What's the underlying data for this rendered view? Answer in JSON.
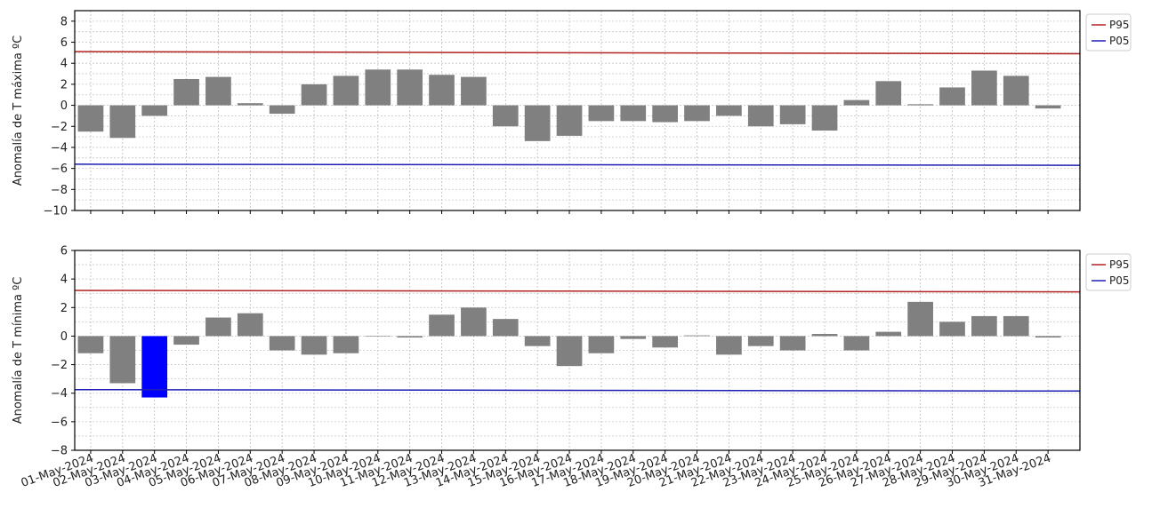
{
  "chart_data": [
    {
      "type": "bar",
      "ylabel": "Anomalía de T máxima ºC",
      "ylim": [
        -10,
        9
      ],
      "yticks": [
        -10,
        -8,
        -6,
        -4,
        -2,
        0,
        2,
        4,
        6,
        8
      ],
      "grid": true,
      "legend_position": "outside-right-top",
      "categories": [
        "01-May-2024",
        "02-May-2024",
        "03-May-2024",
        "04-May-2024",
        "05-May-2024",
        "06-May-2024",
        "07-May-2024",
        "08-May-2024",
        "09-May-2024",
        "10-May-2024",
        "11-May-2024",
        "12-May-2024",
        "13-May-2024",
        "14-May-2024",
        "15-May-2024",
        "16-May-2024",
        "17-May-2024",
        "18-May-2024",
        "19-May-2024",
        "20-May-2024",
        "21-May-2024",
        "22-May-2024",
        "23-May-2024",
        "24-May-2024",
        "25-May-2024",
        "26-May-2024",
        "27-May-2024",
        "28-May-2024",
        "29-May-2024",
        "30-May-2024",
        "31-May-2024"
      ],
      "values": [
        -2.5,
        -3.1,
        -1.0,
        2.5,
        2.7,
        0.2,
        -0.8,
        2.0,
        2.8,
        3.4,
        3.4,
        2.9,
        2.7,
        -2.0,
        -3.4,
        -2.9,
        -1.5,
        -1.5,
        -1.6,
        -1.5,
        -1.0,
        -2.0,
        -1.8,
        -2.4,
        0.5,
        2.3,
        0.1,
        1.7,
        3.3,
        2.8,
        -0.3
      ],
      "bar_colors": [
        "#808080",
        "#808080",
        "#808080",
        "#808080",
        "#808080",
        "#808080",
        "#808080",
        "#808080",
        "#808080",
        "#808080",
        "#808080",
        "#808080",
        "#808080",
        "#808080",
        "#808080",
        "#808080",
        "#808080",
        "#808080",
        "#808080",
        "#808080",
        "#808080",
        "#808080",
        "#808080",
        "#808080",
        "#808080",
        "#808080",
        "#808080",
        "#808080",
        "#808080",
        "#808080",
        "#808080"
      ],
      "series": [
        {
          "name": "P95",
          "color": "#b22222",
          "start": 5.1,
          "end": 4.9
        },
        {
          "name": "P05",
          "color": "#1f1fb4",
          "start": -5.6,
          "end": -5.7
        }
      ]
    },
    {
      "type": "bar",
      "ylabel": "Anomalía de T mínima ºC",
      "ylim": [
        -8,
        6
      ],
      "yticks": [
        -8,
        -6,
        -4,
        -2,
        0,
        2,
        4,
        6
      ],
      "grid": true,
      "legend_position": "outside-right-top",
      "categories": [
        "01-May-2024",
        "02-May-2024",
        "03-May-2024",
        "04-May-2024",
        "05-May-2024",
        "06-May-2024",
        "07-May-2024",
        "08-May-2024",
        "09-May-2024",
        "10-May-2024",
        "11-May-2024",
        "12-May-2024",
        "13-May-2024",
        "14-May-2024",
        "15-May-2024",
        "16-May-2024",
        "17-May-2024",
        "18-May-2024",
        "19-May-2024",
        "20-May-2024",
        "21-May-2024",
        "22-May-2024",
        "23-May-2024",
        "24-May-2024",
        "25-May-2024",
        "26-May-2024",
        "27-May-2024",
        "28-May-2024",
        "29-May-2024",
        "30-May-2024",
        "31-May-2024"
      ],
      "values": [
        -1.2,
        -3.3,
        -4.3,
        -0.6,
        1.3,
        1.6,
        -1.0,
        -1.3,
        -1.2,
        0.0,
        -0.1,
        1.5,
        2.0,
        1.2,
        -0.7,
        -2.1,
        -1.2,
        -0.2,
        -0.8,
        0.05,
        -1.3,
        -0.7,
        -1.0,
        0.15,
        -1.0,
        0.3,
        2.4,
        1.0,
        1.4,
        1.4,
        -0.1
      ],
      "bar_colors": [
        "#808080",
        "#808080",
        "#0000ff",
        "#808080",
        "#808080",
        "#808080",
        "#808080",
        "#808080",
        "#808080",
        "#808080",
        "#808080",
        "#808080",
        "#808080",
        "#808080",
        "#808080",
        "#808080",
        "#808080",
        "#808080",
        "#808080",
        "#808080",
        "#808080",
        "#808080",
        "#808080",
        "#808080",
        "#808080",
        "#808080",
        "#808080",
        "#808080",
        "#808080",
        "#808080",
        "#808080"
      ],
      "series": [
        {
          "name": "P95",
          "color": "#b22222",
          "start": 3.2,
          "end": 3.1
        },
        {
          "name": "P05",
          "color": "#1f1fb4",
          "start": -3.75,
          "end": -3.85
        }
      ]
    }
  ]
}
